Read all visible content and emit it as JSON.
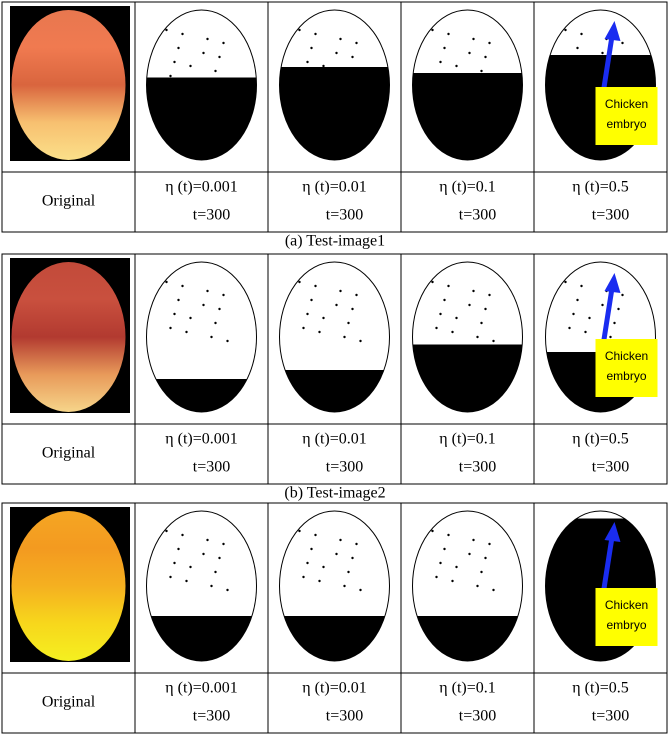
{
  "figure": {
    "panels": [
      {
        "first_label": "Original",
        "labels": [
          {
            "eta": "η (t)=0.001",
            "t": "t=300"
          },
          {
            "eta": "η (t)=0.01",
            "t": "t=300"
          },
          {
            "eta": "η (t)=0.1",
            "t": "t=300"
          },
          {
            "eta": "η (t)=0.5",
            "t": "t=300"
          }
        ],
        "annotation": [
          "Chicken",
          "embryo"
        ],
        "caption": "(a) Test-image1"
      },
      {
        "first_label": "Original",
        "labels": [
          {
            "eta": "η (t)=0.001",
            "t": "t=300"
          },
          {
            "eta": "η (t)=0.01",
            "t": "t=300"
          },
          {
            "eta": "η (t)=0.1",
            "t": "t=300"
          },
          {
            "eta": "η (t)=0.5",
            "t": "t=300"
          }
        ],
        "annotation": [
          "Chicken",
          "embryo"
        ],
        "caption": "(b) Test-image2"
      },
      {
        "first_label": "Original",
        "labels": [
          {
            "eta": "η (t)=0.001",
            "t": "t=300"
          },
          {
            "eta": "η (t)=0.01",
            "t": "t=300"
          },
          {
            "eta": "η (t)=0.1",
            "t": "t=300"
          },
          {
            "eta": "η (t)=0.5",
            "t": "t=300"
          }
        ],
        "annotation": [
          "Chicken",
          "embryo"
        ]
      }
    ]
  }
}
